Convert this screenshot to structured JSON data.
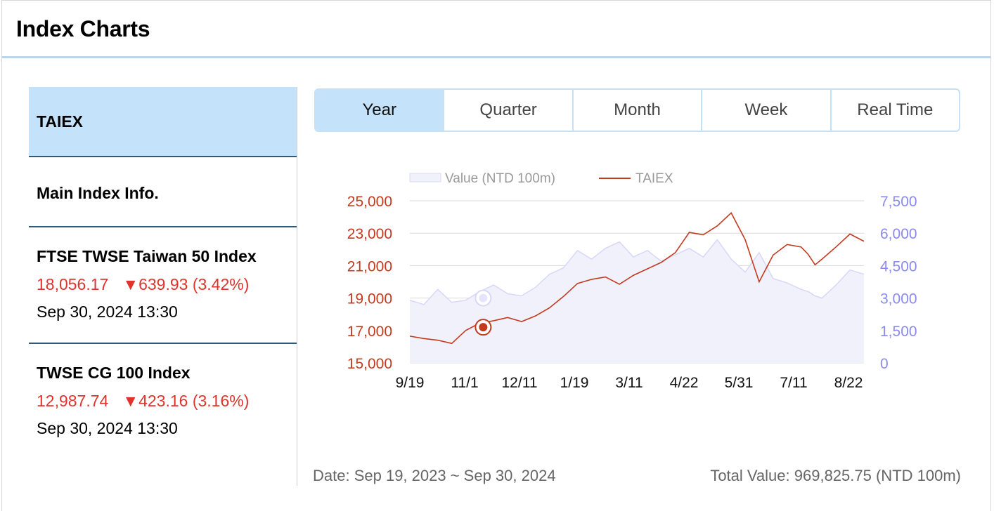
{
  "header": {
    "title": "Index Charts"
  },
  "sidebar": {
    "items": [
      {
        "title": "TAIEX",
        "active": true
      },
      {
        "title": "Main Index Info."
      },
      {
        "title": "FTSE TWSE Taiwan 50 Index",
        "value": "18,056.17",
        "change": "▼639.93 (3.42%)",
        "time": "Sep 30, 2024 13:30"
      },
      {
        "title": "TWSE CG 100 Index",
        "value": "12,987.74",
        "change": "▼423.16 (3.16%)",
        "time": "Sep 30, 2024 13:30"
      }
    ]
  },
  "tabs": [
    {
      "label": "Year",
      "active": true
    },
    {
      "label": "Quarter"
    },
    {
      "label": "Month"
    },
    {
      "label": "Week"
    },
    {
      "label": "Real Time"
    }
  ],
  "footer": {
    "date_range": "Date: Sep 19, 2023 ~ Sep 30, 2024",
    "total_value": "Total Value: 969,825.75 (NTD 100m)"
  },
  "colors": {
    "taiex": "#c33a1f",
    "value_line": "#d7d7f7",
    "value_fill": "#f1f1fc",
    "right_axis": "#8a8aee",
    "accent": "#c4e2fa"
  },
  "chart_data": {
    "type": "line",
    "legend": [
      {
        "name": "Value (NTD 100m)",
        "kind": "area"
      },
      {
        "name": "TAIEX",
        "kind": "line"
      }
    ],
    "x_ticks": [
      "9/19",
      "11/1",
      "12/11",
      "1/19",
      "3/11",
      "4/22",
      "5/31",
      "7/11",
      "8/22"
    ],
    "left_axis": {
      "ticks": [
        "15,000",
        "17,000",
        "19,000",
        "21,000",
        "23,000",
        "25,000"
      ],
      "range": [
        15000,
        25000
      ]
    },
    "right_axis": {
      "ticks": [
        "0",
        "1,500",
        "3,000",
        "4,500",
        "6,000",
        "7,500"
      ],
      "range": [
        0,
        7500
      ]
    },
    "series": [
      {
        "name": "TAIEX",
        "x_index": [
          0,
          8,
          16,
          24,
          32,
          40,
          48,
          56,
          64,
          72,
          80,
          88,
          96,
          104,
          112,
          120,
          128,
          136,
          144,
          152,
          160,
          168,
          176,
          184,
          192,
          200,
          208,
          216,
          224,
          228,
          232,
          236,
          244,
          252,
          260
        ],
        "values": [
          16650,
          16500,
          16400,
          16200,
          17000,
          17450,
          17600,
          17800,
          17550,
          17900,
          18400,
          19100,
          19900,
          20150,
          20300,
          19850,
          20400,
          20800,
          21200,
          21800,
          23050,
          22900,
          23450,
          24250,
          22600,
          20000,
          21650,
          22300,
          22150,
          21700,
          21050,
          21400,
          22150,
          22950,
          22500
        ]
      },
      {
        "name": "Value (NTD 100m)",
        "x_index": [
          0,
          8,
          16,
          24,
          32,
          40,
          48,
          56,
          64,
          72,
          80,
          88,
          96,
          104,
          112,
          120,
          128,
          136,
          144,
          152,
          160,
          168,
          176,
          184,
          192,
          200,
          208,
          216,
          224,
          228,
          232,
          236,
          244,
          252,
          260
        ],
        "values": [
          2900,
          2700,
          3400,
          2800,
          2900,
          3300,
          3600,
          3200,
          3100,
          3500,
          4100,
          4400,
          5200,
          4800,
          5300,
          5600,
          4900,
          5200,
          4700,
          5000,
          5300,
          4900,
          5700,
          4800,
          4200,
          5100,
          3900,
          3700,
          3400,
          3300,
          3100,
          3000,
          3600,
          4300,
          4100
        ]
      }
    ],
    "markers": [
      {
        "series": "TAIEX",
        "x_index": 42,
        "value": 17200
      },
      {
        "series": "Value (NTD 100m)",
        "x_index": 42,
        "value": 3000
      }
    ],
    "x_count": 261,
    "grid": true
  }
}
